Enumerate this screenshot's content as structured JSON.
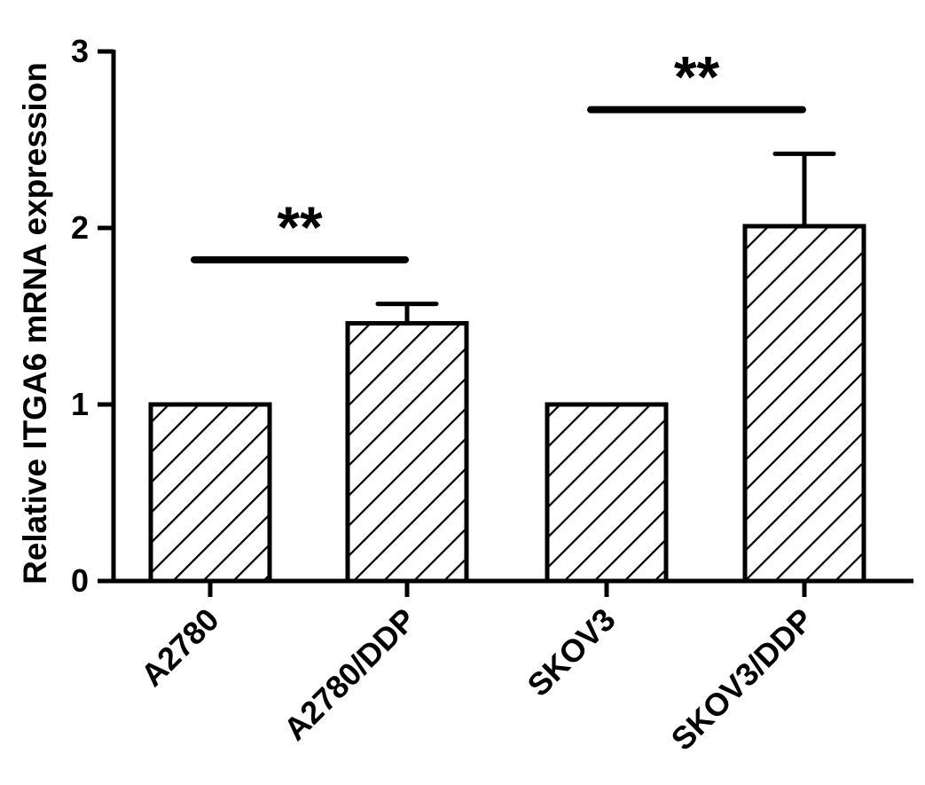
{
  "chart_data": {
    "type": "bar",
    "ylabel": "Relative ITGA6 mRNA expression",
    "categories": [
      "A2780",
      "A2780/DDP",
      "SKOV3",
      "SKOV3/DDP"
    ],
    "values": [
      1.0,
      1.46,
      1.0,
      2.01
    ],
    "errors": [
      0,
      0.11,
      0,
      0.41
    ],
    "ylim": [
      0,
      3
    ],
    "yticks": [
      "0",
      "1",
      "2",
      "3"
    ],
    "bar_fill": "diagonal-hatch",
    "bar_color": "#000000",
    "grid": false,
    "significance": [
      {
        "groups": [
          0,
          1
        ],
        "label": "**",
        "y": 1.82
      },
      {
        "groups": [
          2,
          3
        ],
        "label": "**",
        "y": 2.67
      }
    ]
  }
}
